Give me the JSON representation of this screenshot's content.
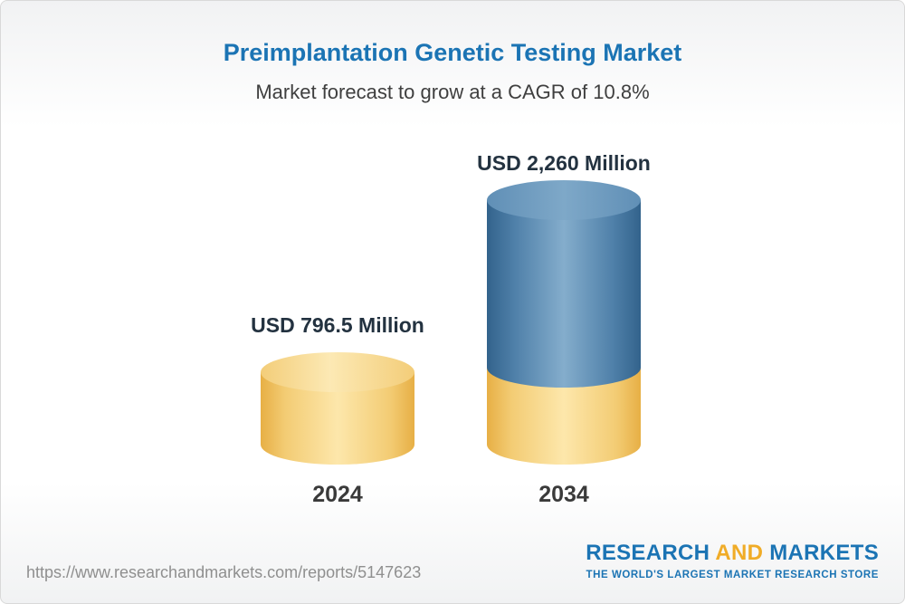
{
  "header": {
    "title": "Preimplantation Genetic Testing Market",
    "subtitle": "Market forecast to grow at a CAGR of 10.8%"
  },
  "chart_data": {
    "type": "bar",
    "variant": "3d-cylinder",
    "title": "Preimplantation Genetic Testing Market",
    "subtitle": "Market forecast to grow at a CAGR of 10.8%",
    "categories": [
      "2024",
      "2034"
    ],
    "values": [
      796.5,
      2260
    ],
    "value_labels": [
      "USD 796.5 Million",
      "USD 2,260 Million"
    ],
    "unit": "USD Million",
    "cagr_percent": 10.8,
    "xlabel": "",
    "ylabel": "",
    "grid": false,
    "legend_position": "none",
    "colors": {
      "bar_2024": "#f6cf6b",
      "bar_2034_top_segment": "#4f80a9",
      "bar_2034_base_segment": "#f6cf6b"
    }
  },
  "footer": {
    "url": "https://www.researchandmarkets.com/reports/5147623",
    "logo": {
      "part1": "RESEARCH",
      "part2": "AND",
      "part3": "MARKETS",
      "tagline": "THE WORLD'S LARGEST MARKET RESEARCH STORE"
    }
  },
  "colors": {
    "accent_blue": "#1b74b4",
    "accent_gold": "#f0ac27",
    "title_blue": "#1b74b4",
    "text_dark": "#233240"
  }
}
